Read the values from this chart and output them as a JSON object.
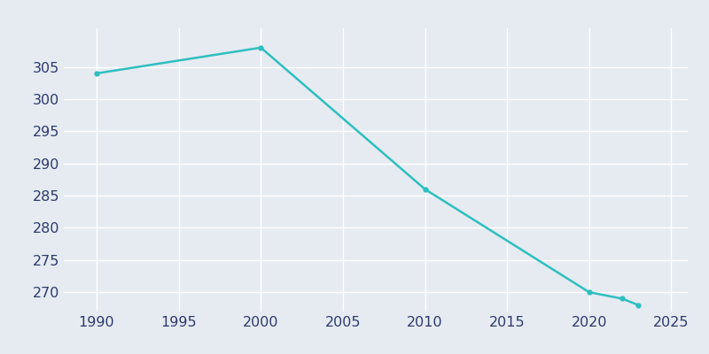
{
  "years": [
    1990,
    2000,
    2010,
    2020,
    2022,
    2023
  ],
  "population": [
    304,
    308,
    286,
    270,
    269,
    268
  ],
  "line_color": "#2EBFBF",
  "marker": "o",
  "marker_size": 3.5,
  "line_width": 1.8,
  "bg_color": "#E6EBF2",
  "plot_bg_color": "#E6EBF2",
  "grid_color": "#FFFFFF",
  "tick_color": "#2D3A6B",
  "xlim": [
    1988,
    2026
  ],
  "ylim": [
    267,
    311
  ],
  "xticks": [
    1990,
    1995,
    2000,
    2005,
    2010,
    2015,
    2020,
    2025
  ],
  "yticks": [
    270,
    275,
    280,
    285,
    290,
    295,
    300,
    305
  ],
  "tick_fontsize": 11.5
}
